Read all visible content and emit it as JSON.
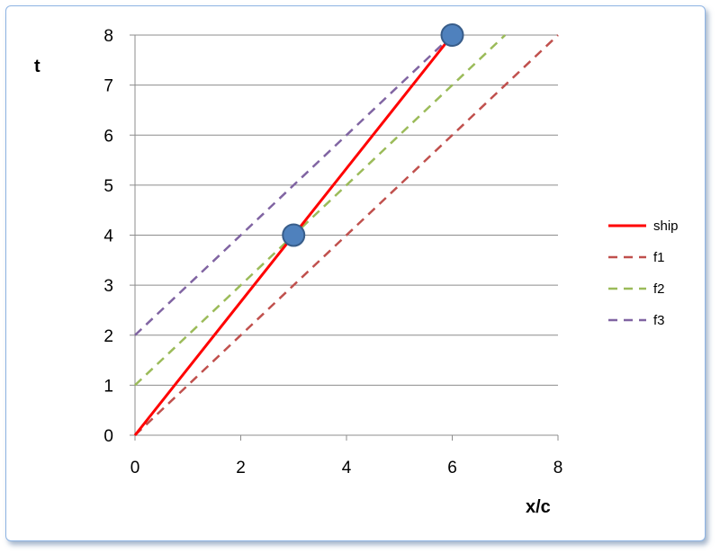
{
  "chart_data": {
    "type": "line",
    "title": "",
    "xlabel": "x/c",
    "ylabel": "t",
    "xlim": [
      0,
      8
    ],
    "ylim": [
      0,
      8
    ],
    "xticks": [
      0,
      2,
      4,
      6,
      8
    ],
    "yticks": [
      0,
      1,
      2,
      3,
      4,
      5,
      6,
      7,
      8
    ],
    "grid": "horizontal",
    "legend": "right",
    "series": [
      {
        "name": "ship",
        "x": [
          0,
          6
        ],
        "y": [
          0,
          8
        ],
        "color": "#ff0000",
        "style": "solid"
      },
      {
        "name": "f1",
        "x": [
          0,
          8
        ],
        "y": [
          0,
          8
        ],
        "color": "#c0504d",
        "style": "dashed"
      },
      {
        "name": "f2",
        "x": [
          0,
          7
        ],
        "y": [
          1,
          8
        ],
        "color": "#9bbb59",
        "style": "dashed"
      },
      {
        "name": "f3",
        "x": [
          0,
          6
        ],
        "y": [
          2,
          8
        ],
        "color": "#8064a2",
        "style": "dashed"
      }
    ],
    "points": [
      {
        "x": 3,
        "y": 4,
        "color": "#4f81bd"
      },
      {
        "x": 6,
        "y": 8,
        "color": "#4f81bd"
      }
    ]
  }
}
